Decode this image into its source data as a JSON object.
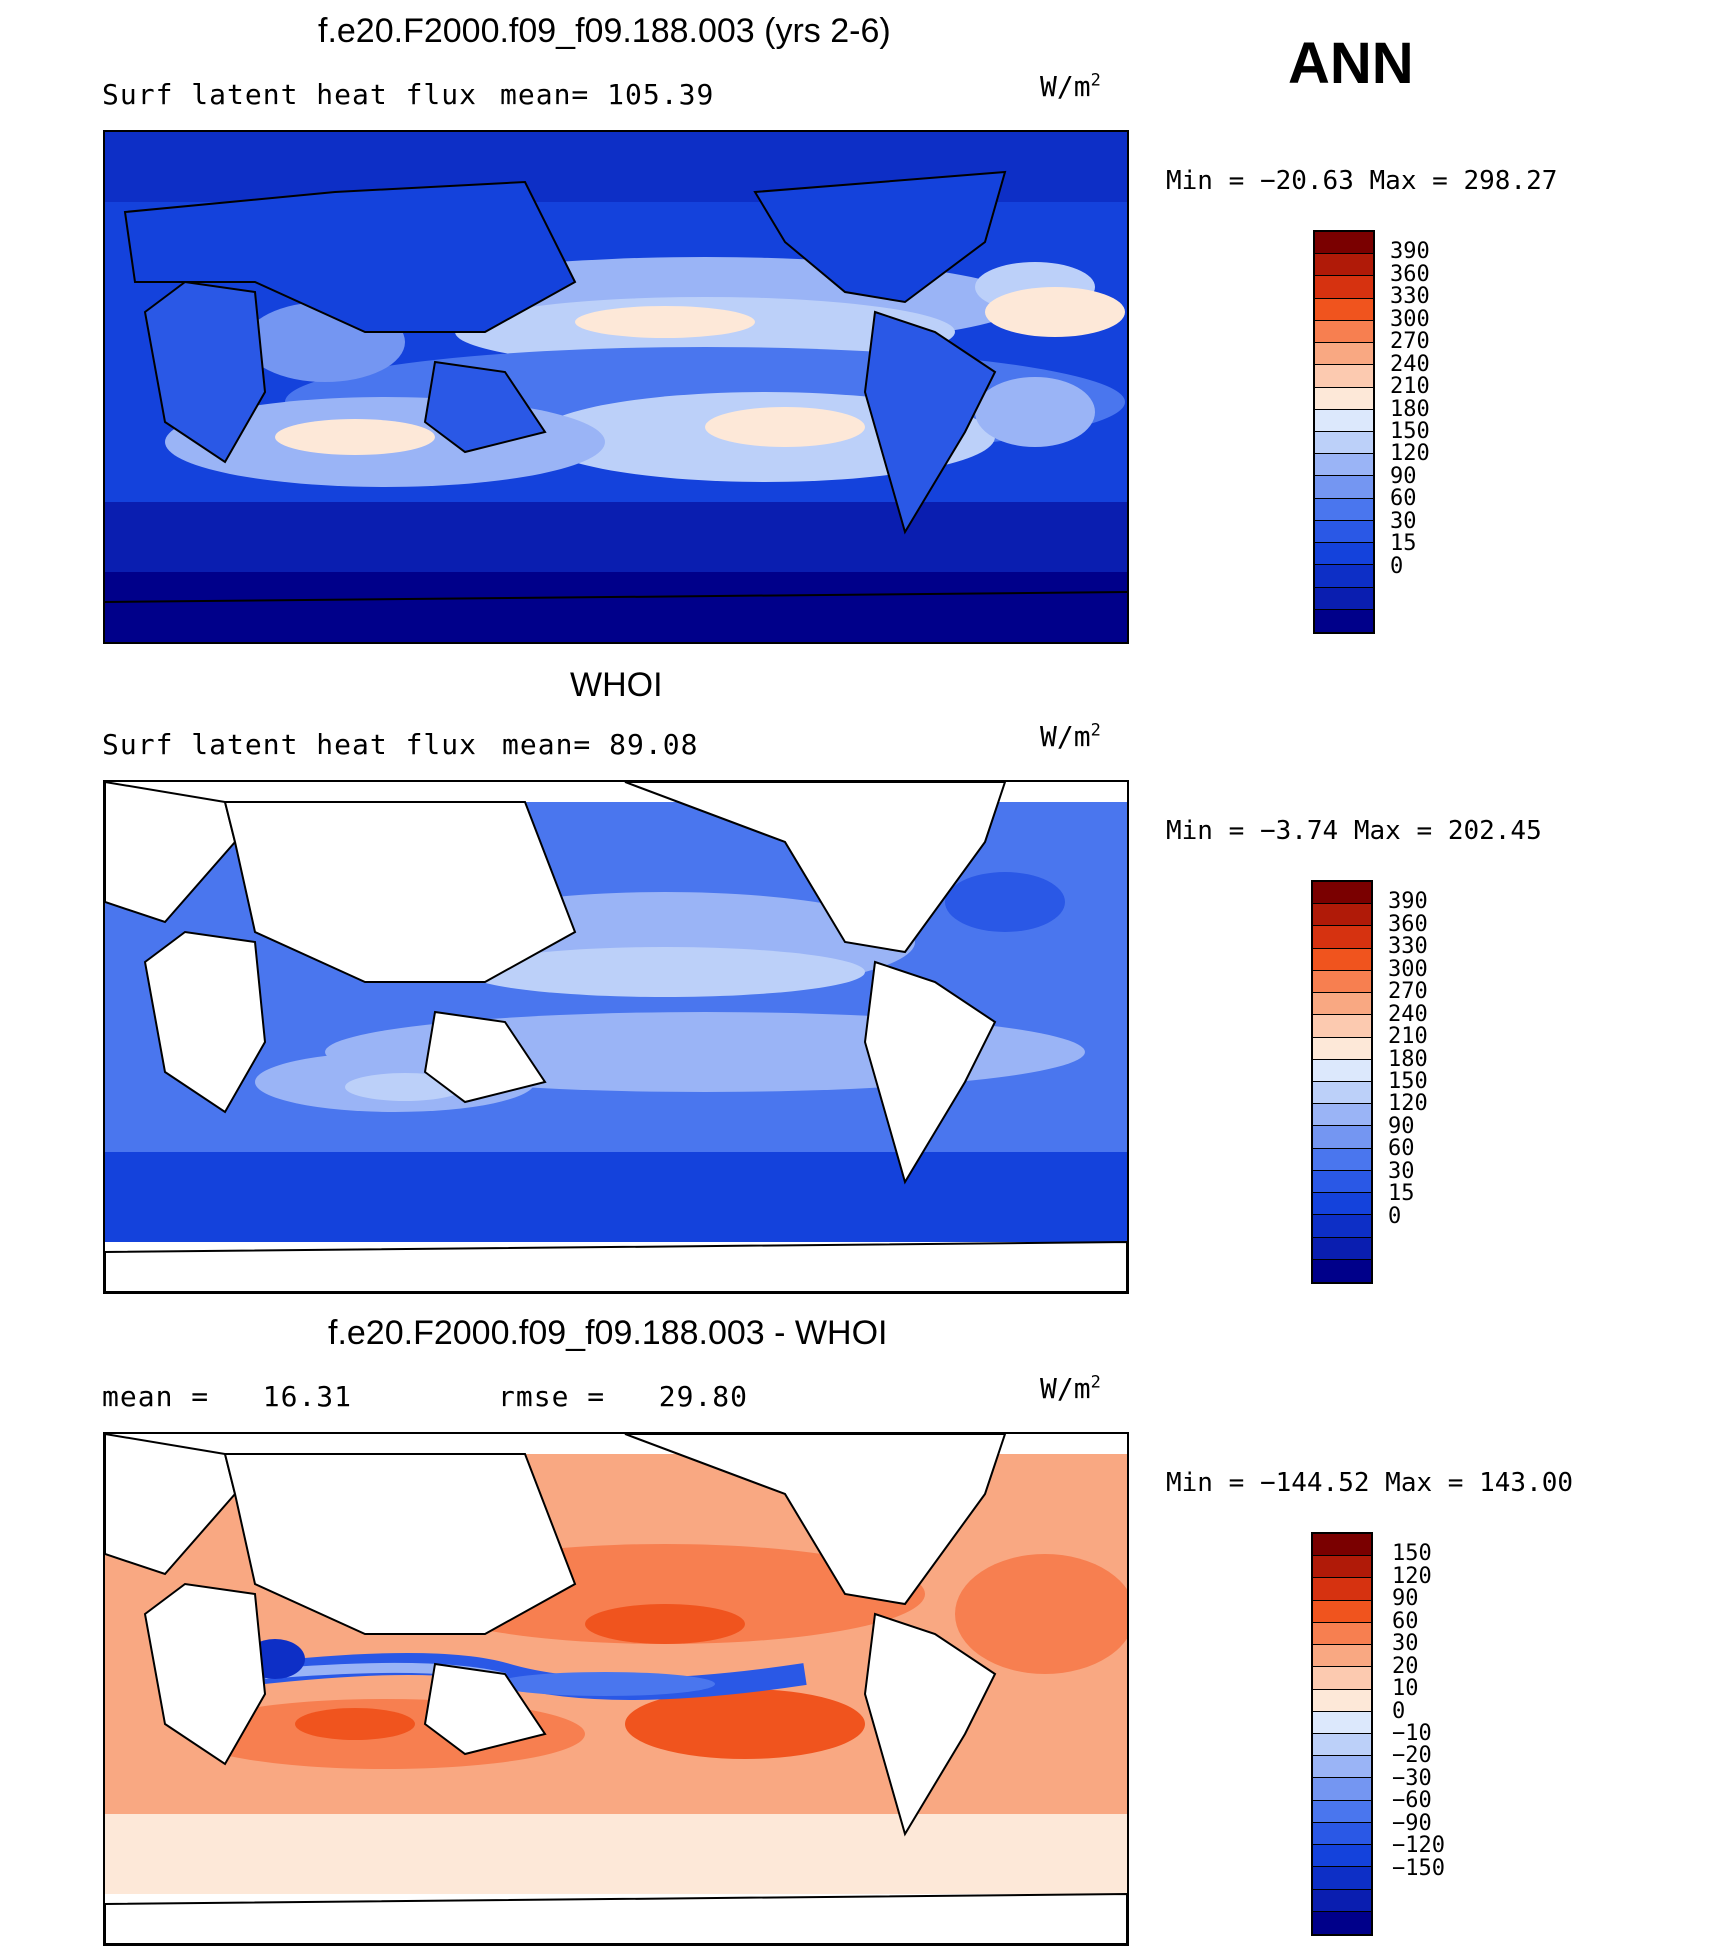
{
  "season": "ANN",
  "colors": {
    "abs_scale": [
      "#00008a",
      "#0a1eb0",
      "#0d2fc6",
      "#1442dc",
      "#2a58e6",
      "#4a76ee",
      "#7496f2",
      "#9ab4f6",
      "#bcd0f9",
      "#dce8fc",
      "#fde8d8",
      "#fccab0",
      "#f9a882",
      "#f77f50",
      "#f0541e",
      "#d63210",
      "#b01a08",
      "#7a0000"
    ],
    "diff_scale": [
      "#00008a",
      "#0a1eb0",
      "#0d2fc6",
      "#1442dc",
      "#2a58e6",
      "#4a76ee",
      "#7496f2",
      "#9ab4f6",
      "#bcd0f9",
      "#dce8fc",
      "#fde8d8",
      "#fccab0",
      "#f9a882",
      "#f77f50",
      "#f0541e",
      "#d63210",
      "#b01a08",
      "#7a0000"
    ]
  },
  "panels": [
    {
      "title": "f.e20.F2000.f09_f09.188.003 (yrs 2-6)",
      "left_label": "Surf latent heat flux",
      "stat_label": "mean=",
      "stat_value": "105.39",
      "units_base": "W/m",
      "units_exp": "2",
      "min_label": "Min =",
      "min_value": "−20.63",
      "max_label": "Max =",
      "max_value": "298.27",
      "ticks": [
        "390",
        "360",
        "330",
        "300",
        "270",
        "240",
        "210",
        "180",
        "150",
        "120",
        "90",
        "60",
        "30",
        "15",
        "0"
      ]
    },
    {
      "title": "WHOI",
      "left_label": "Surf latent heat flux",
      "stat_label": "mean=",
      "stat_value": "89.08",
      "units_base": "W/m",
      "units_exp": "2",
      "min_label": "Min =",
      "min_value": "−3.74",
      "max_label": "Max =",
      "max_value": "202.45",
      "ticks": [
        "390",
        "360",
        "330",
        "300",
        "270",
        "240",
        "210",
        "180",
        "150",
        "120",
        "90",
        "60",
        "30",
        "15",
        "0"
      ]
    },
    {
      "title": "f.e20.F2000.f09_f09.188.003 - WHOI",
      "left_label": "mean =",
      "left_value": "16.31",
      "stat_label": "rmse =",
      "stat_value": "29.80",
      "units_base": "W/m",
      "units_exp": "2",
      "min_label": "Min =",
      "min_value": "−144.52",
      "max_label": "Max =",
      "max_value": "143.00",
      "ticks": [
        "150",
        "120",
        "90",
        "60",
        "30",
        "20",
        "10",
        "0",
        "−10",
        "−20",
        "−30",
        "−60",
        "−90",
        "−120",
        "−150"
      ]
    }
  ]
}
